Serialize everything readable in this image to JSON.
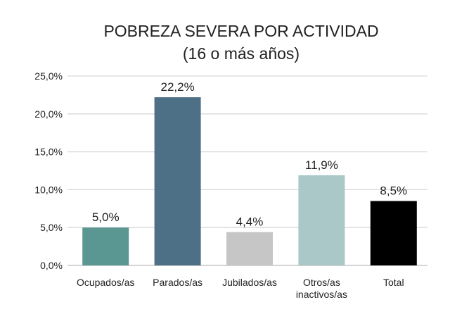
{
  "chart_data": {
    "type": "bar",
    "title": [
      "POBREZA SEVERA POR ACTIVIDAD",
      "(16 o más años)"
    ],
    "xlabel": "",
    "ylabel": "",
    "ylim": [
      0,
      25
    ],
    "yticks": [
      0,
      5,
      10,
      15,
      20,
      25
    ],
    "ytick_labels": [
      "0,0%",
      "5,0%",
      "10,0%",
      "15,0%",
      "20,0%",
      "25,0%"
    ],
    "grid": true,
    "categories": [
      [
        "Ocupados/as"
      ],
      [
        "Parados/as"
      ],
      [
        "Jubilados/as"
      ],
      [
        "Otros/as",
        "inactivos/as"
      ],
      [
        "Total"
      ]
    ],
    "values": [
      5.0,
      22.2,
      4.4,
      11.9,
      8.5
    ],
    "data_labels": [
      "5,0%",
      "22,2%",
      "4,4%",
      "11,9%",
      "8,5%"
    ],
    "colors": [
      "#5a9793",
      "#4e7087",
      "#c6c6c6",
      "#a9c8c7",
      "#000000"
    ]
  }
}
